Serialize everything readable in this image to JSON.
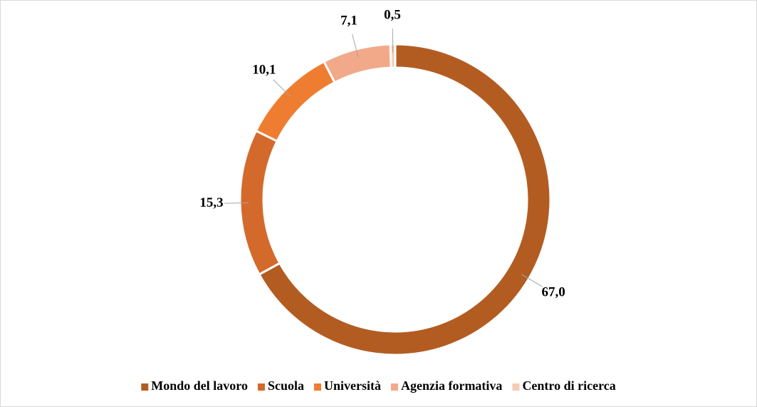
{
  "chart_data": {
    "type": "donut",
    "categories": [
      "Mondo del lavoro",
      "Scuola",
      "Università",
      "Agenzia formativa",
      "Centro di ricerca"
    ],
    "values": [
      67.0,
      15.3,
      10.1,
      7.1,
      0.5
    ],
    "value_labels": [
      "67,0",
      "15,3",
      "10,1",
      "7,1",
      "0,5"
    ],
    "colors": [
      "#b35c22",
      "#d4692c",
      "#ef7d31",
      "#f2a98a",
      "#f8cbb4"
    ],
    "legend": "bottom"
  }
}
